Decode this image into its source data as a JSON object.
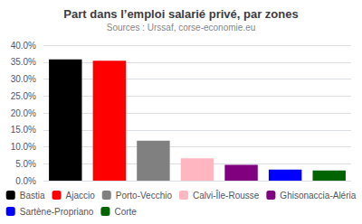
{
  "chart_data": {
    "type": "bar",
    "title": "Part dans l’emploi salarié privé, par zones",
    "subtitle": "Sources : Urssaf, corse-economie.eu",
    "categories": [
      "Bastia",
      "Ajaccio",
      "Porto-Vecchio",
      "Calvi-Île-Rousse",
      "Ghisonaccia-Aléria",
      "Sartène-Propriano",
      "Corte"
    ],
    "values": [
      35.8,
      35.4,
      11.8,
      6.6,
      4.7,
      3.3,
      3.0
    ],
    "colors": [
      "#000000",
      "#ff0000",
      "#808080",
      "#ffb6c1",
      "#800080",
      "#0000ff",
      "#006400"
    ],
    "ylim": [
      0,
      40.0
    ],
    "yticks": [
      {
        "value": 0.0,
        "label": "0.0%"
      },
      {
        "value": 5.0,
        "label": "5.0%"
      },
      {
        "value": 10.0,
        "label": "10.0%"
      },
      {
        "value": 15.0,
        "label": "15.0%"
      },
      {
        "value": 20.0,
        "label": "20.0%"
      },
      {
        "value": 25.0,
        "label": "25.0%"
      },
      {
        "value": 30.0,
        "label": "30.0%"
      },
      {
        "value": 35.0,
        "label": "35.0%"
      },
      {
        "value": 40.0,
        "label": "40.0%"
      }
    ],
    "grid": true,
    "tick_labels": "y",
    "legend": "bottom"
  }
}
